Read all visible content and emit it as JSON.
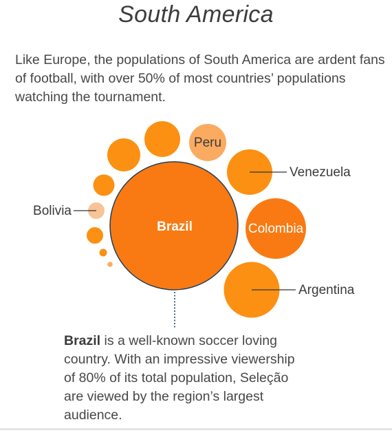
{
  "title": "South America",
  "intro": "Like Europe, the populations of South America are ardent fans of football, with over 50% of most countries’ populations watching the tournament.",
  "colors": {
    "dark_orange": "#f97a12",
    "orange": "#fb9012",
    "light_orange": "#fbab60",
    "pale_orange": "#f8c396",
    "leader_line": "#333333",
    "dotted_line": "#1f3e5c"
  },
  "chart_data": {
    "type": "bubble",
    "bubbles": [
      {
        "label": "Brazil",
        "size": 1.0,
        "tone": "dark_orange"
      },
      {
        "label": "Colombia",
        "size": 0.475,
        "tone": "dark_orange"
      },
      {
        "label": "Argentina",
        "size": 0.435,
        "tone": "orange"
      },
      {
        "label": "Venezuela",
        "size": 0.356,
        "tone": "orange"
      },
      {
        "label": "Peru",
        "size": 0.293,
        "tone": "light_orange"
      },
      {
        "label": "",
        "size": 0.277,
        "tone": "orange"
      },
      {
        "label": "",
        "size": 0.257,
        "tone": "orange"
      },
      {
        "label": "",
        "size": 0.168,
        "tone": "orange"
      },
      {
        "label": "Bolivia",
        "size": 0.131,
        "tone": "pale_orange"
      },
      {
        "label": "",
        "size": 0.131,
        "tone": "orange"
      },
      {
        "label": "",
        "size": 0.058,
        "tone": "orange"
      },
      {
        "label": "",
        "size": 0.04,
        "tone": "light_orange"
      }
    ]
  },
  "annotation": {
    "bold": "Brazil",
    "text": " is a well-known soccer loving country. With an impressive viewership of 80% of its total population, Seleção are viewed by the region’s largest audience."
  }
}
